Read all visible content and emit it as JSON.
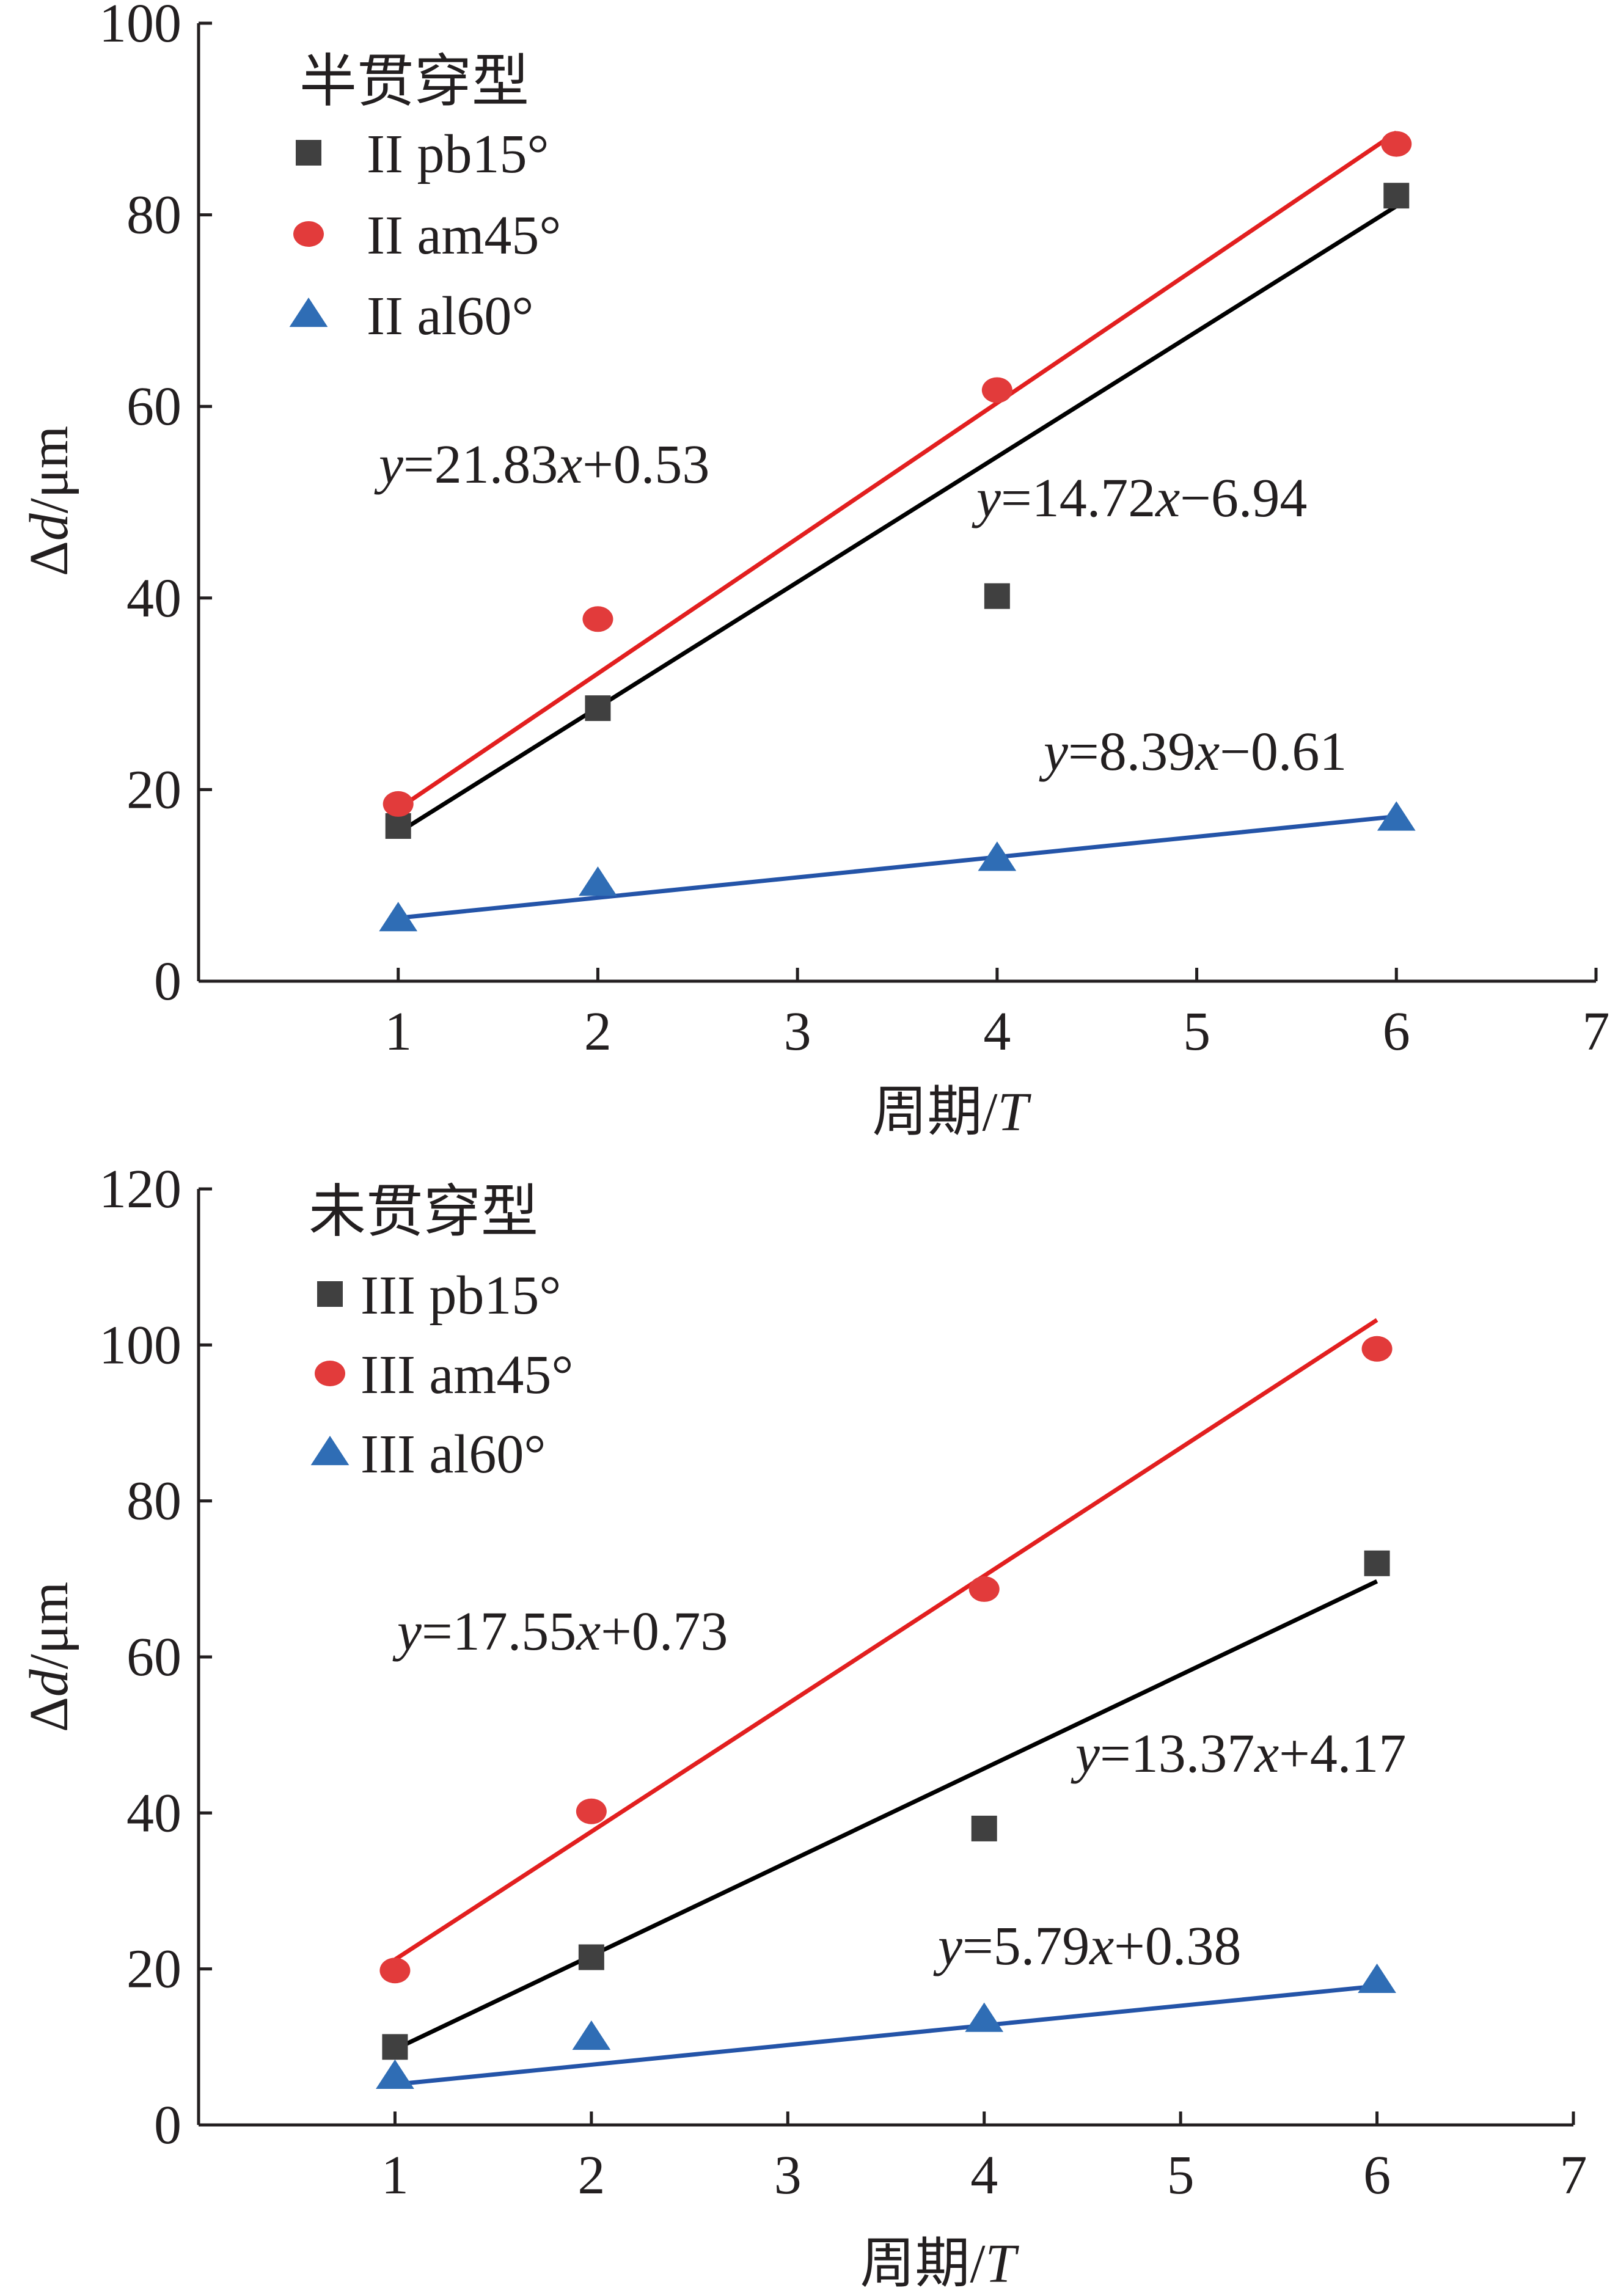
{
  "colors": {
    "pb15": "#404040",
    "am45": "#e23b3b",
    "al60": "#2f6db5",
    "fit_pb15": "#000000",
    "fit_am45": "#e21f1f",
    "fit_al60": "#2454a8",
    "axis": "#231f20"
  },
  "chart_data": [
    {
      "type": "scatter",
      "panel": "top",
      "legend_title": "半贯穿型",
      "legend_position": "top-left",
      "xlabel": "周期/",
      "xlabel_italic": "T",
      "ylabel": "Δ",
      "ylabel_italic": "d",
      "ylabel_unit": "/μm",
      "xlim": [
        0,
        7
      ],
      "ylim": [
        0,
        100
      ],
      "xticks": [
        "1",
        "2",
        "3",
        "4",
        "5",
        "6",
        "7"
      ],
      "yticks": [
        "0",
        "20",
        "40",
        "60",
        "80",
        "100"
      ],
      "grid": false,
      "series": [
        {
          "key": "pb15",
          "name": "II pb15°",
          "marker": "square",
          "x": [
            1,
            2,
            4,
            6
          ],
          "y": [
            16.2,
            28.5,
            40.2,
            82.0
          ],
          "fit_line": [
            [
              1,
              15.5
            ],
            [
              6,
              80.9
            ]
          ]
        },
        {
          "key": "am45",
          "name": "II am45°",
          "marker": "circle",
          "x": [
            1,
            2,
            4,
            6
          ],
          "y": [
            18.5,
            37.8,
            61.7,
            87.4
          ],
          "fit_line": [
            [
              1,
              18.0
            ],
            [
              6,
              88.6
            ]
          ]
        },
        {
          "key": "al60",
          "name": "II al60°",
          "marker": "triangle",
          "x": [
            1,
            2,
            4,
            6
          ],
          "y": [
            6.5,
            10.2,
            12.8,
            17.0
          ],
          "fit_line": [
            [
              1,
              6.6
            ],
            [
              6,
              17.2
            ]
          ]
        }
      ],
      "annotations": [
        {
          "italic": "y",
          "rest": "=21.83",
          "italic2": "x",
          "rest2": "+0.53"
        },
        {
          "italic": "y",
          "rest": "=14.72",
          "italic2": "x",
          "rest2": "−6.94"
        },
        {
          "italic": "y",
          "rest": "=8.39",
          "italic2": "x",
          "rest2": "−0.61"
        }
      ]
    },
    {
      "type": "scatter",
      "panel": "bottom",
      "legend_title": "未贯穿型",
      "legend_position": "top-left",
      "xlabel": "周期/",
      "xlabel_italic": "T",
      "ylabel": "Δ",
      "ylabel_italic": "d",
      "ylabel_unit": "/μm",
      "xlim": [
        0,
        7
      ],
      "ylim": [
        0,
        120
      ],
      "xticks": [
        "1",
        "2",
        "3",
        "4",
        "5",
        "6",
        "7"
      ],
      "yticks": [
        "0",
        "20",
        "40",
        "60",
        "80",
        "100",
        "120"
      ],
      "grid": false,
      "series": [
        {
          "key": "pb15",
          "name": "III pb15°",
          "marker": "square",
          "x": [
            1,
            2,
            4,
            6
          ],
          "y": [
            10.0,
            21.5,
            38.0,
            72.0
          ],
          "fit_line": [
            [
              1,
              9.7
            ],
            [
              6,
              69.7
            ]
          ]
        },
        {
          "key": "am45",
          "name": "III am45°",
          "marker": "circle",
          "x": [
            1,
            2,
            4,
            6
          ],
          "y": [
            19.8,
            40.2,
            68.7,
            99.5
          ],
          "fit_line": [
            [
              1,
              21.2
            ],
            [
              6,
              103.2
            ]
          ]
        },
        {
          "key": "al60",
          "name": "III al60°",
          "marker": "triangle",
          "x": [
            1,
            2,
            4,
            6
          ],
          "y": [
            6.2,
            11.2,
            13.5,
            18.5
          ],
          "fit_line": [
            [
              1,
              5.2
            ],
            [
              6,
              17.8
            ]
          ]
        }
      ],
      "annotations": [
        {
          "italic": "y",
          "rest": "=17.55",
          "italic2": "x",
          "rest2": "+0.73"
        },
        {
          "italic": "y",
          "rest": "=13.37",
          "italic2": "x",
          "rest2": "+4.17"
        },
        {
          "italic": "y",
          "rest": "=5.79",
          "italic2": "x",
          "rest2": "+0.38"
        }
      ]
    }
  ]
}
